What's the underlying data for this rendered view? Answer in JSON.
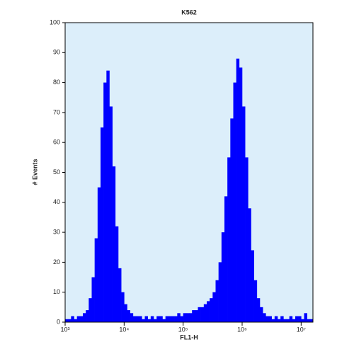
{
  "chart_data": {
    "type": "histogram",
    "title": "K562",
    "xlabel": "FL1-H",
    "ylabel": "# Events",
    "xscale": "log",
    "color": "#0000ff",
    "background": "#dceefa",
    "xlim": [
      1000,
      15850000
    ],
    "ylim": [
      0,
      100
    ],
    "xticks": [
      {
        "value": 1000,
        "label": "10³"
      },
      {
        "value": 10000,
        "label": "10⁴"
      },
      {
        "value": 100000,
        "label": "10⁵"
      },
      {
        "value": 1000000,
        "label": "10⁶"
      },
      {
        "value": 10000000,
        "label": "10⁷"
      }
    ],
    "yticks": [
      0,
      10,
      20,
      30,
      40,
      50,
      60,
      70,
      80,
      90,
      100
    ],
    "bins": [
      1000,
      1122,
      1259,
      1413,
      1585,
      1778,
      1995,
      2239,
      2512,
      2818,
      3162,
      3548,
      3981,
      4467,
      5012,
      5623,
      6310,
      7079,
      7943,
      8913,
      10000,
      11220,
      12590,
      14130,
      15850,
      17780,
      19950,
      22390,
      25120,
      28180,
      31620,
      35480,
      39810,
      44670,
      50120,
      56230,
      63100,
      70790,
      79430,
      89130,
      100000,
      112200,
      125900,
      141300,
      158500,
      177800,
      199500,
      223900,
      251200,
      281800,
      316200,
      354800,
      398100,
      446700,
      501200,
      562300,
      631000,
      707900,
      794300,
      891300,
      1000000,
      1122000,
      1259000,
      1413000,
      1585000,
      1778000,
      1995000,
      2239000,
      2512000,
      2818000,
      3162000,
      3548000,
      3981000,
      4467000,
      5012000,
      5623000,
      6310000,
      7079000,
      7943000,
      8913000,
      10000000,
      11220000,
      12590000,
      14130000,
      15850000
    ],
    "values": [
      1,
      1,
      2,
      1,
      2,
      2,
      3,
      4,
      8,
      15,
      28,
      45,
      65,
      80,
      84,
      72,
      52,
      32,
      18,
      10,
      6,
      4,
      3,
      2,
      2,
      2,
      1,
      2,
      1,
      2,
      1,
      2,
      2,
      1,
      2,
      2,
      2,
      2,
      3,
      2,
      3,
      3,
      3,
      4,
      4,
      5,
      5,
      6,
      7,
      8,
      10,
      14,
      20,
      30,
      42,
      55,
      68,
      80,
      88,
      85,
      72,
      55,
      38,
      24,
      14,
      8,
      5,
      3,
      2,
      2,
      1,
      2,
      1,
      2,
      1,
      1,
      2,
      1,
      2,
      2,
      1,
      3,
      1,
      1
    ]
  }
}
